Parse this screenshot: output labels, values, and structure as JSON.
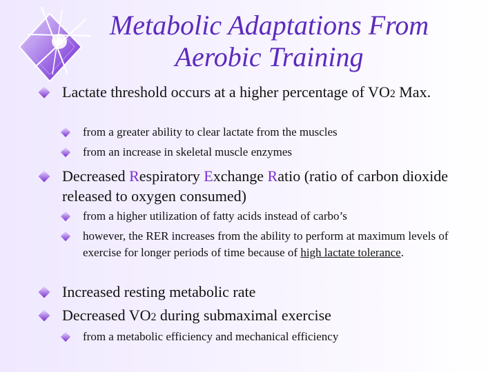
{
  "title": "Metabolic Adaptations From Aerobic Training",
  "bullets": {
    "b1": {
      "pre": "Lactate threshold occurs at a higher percentage of VO",
      "sub": "2",
      "post": " Max."
    },
    "b1a": "from a greater ability to clear lactate from the muscles",
    "b1b": "from an increase in skeletal muscle enzymes",
    "b2": {
      "lead": "Decreased ",
      "r": "R",
      "w1": "espiratory ",
      "e": "E",
      "w2": "xchange ",
      "r2": "R",
      "w3": "atio (ratio of carbon dioxide released to oxygen consumed)"
    },
    "b2a": "from a higher utilization of fatty acids instead of carbo’s",
    "b2b": {
      "pre": "however, the RER increases from the ability to perform at maximum levels of exercise for longer periods of time because of ",
      "link": "high lactate tolerance",
      "post": "."
    },
    "b3": "Increased resting metabolic rate",
    "b4": {
      "pre": "Decreased VO",
      "sub": "2",
      "post": " during submaximal exercise"
    },
    "b4a": "from a metabolic efficiency and mechanical efficiency"
  },
  "colors": {
    "title": "#5b2bbd",
    "accent": "#7a2fd1",
    "background": "#efe8ff"
  },
  "decor": {
    "logo_icon": "sparkle-diamond-icon",
    "bullet_icon": "diamond-bullet-icon"
  }
}
